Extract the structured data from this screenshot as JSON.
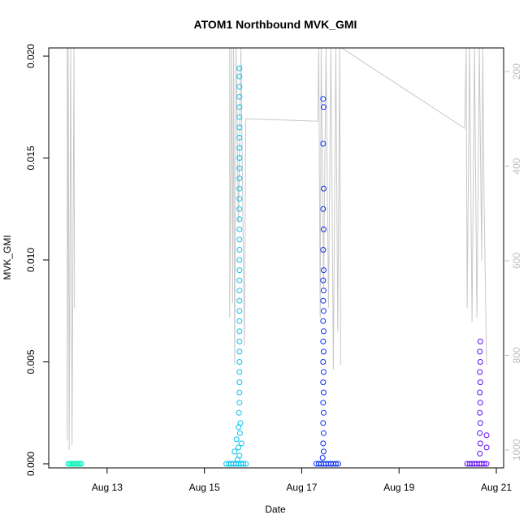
{
  "chart_data": {
    "type": "scatter",
    "title": "ATOM1 Northbound MVK_GMI",
    "xlabel": "Date",
    "ylabel": "MVK_GMI",
    "x_ticks": [
      "Aug 13",
      "Aug 15",
      "Aug 17",
      "Aug 19",
      "Aug 21"
    ],
    "x_tick_values": [
      13,
      15,
      17,
      19,
      21
    ],
    "xlim": [
      11.8,
      21.15
    ],
    "y_ticks": [
      "0.000",
      "0.005",
      "0.010",
      "0.015",
      "0.020"
    ],
    "y_tick_values": [
      0,
      0.005,
      0.01,
      0.015,
      0.02
    ],
    "ylim": [
      -0.0002,
      0.0204
    ],
    "right_axis": {
      "ticks": [
        "200",
        "400",
        "600",
        "800",
        "1000"
      ],
      "tick_values": [
        200,
        400,
        600,
        800,
        1000
      ],
      "ylim": [
        1038,
        150
      ],
      "reversed": true,
      "color": "#bebebe"
    },
    "grid": false,
    "series": [
      {
        "color": "#00f5bd",
        "points": [
          [
            12.2,
            0
          ],
          [
            12.23,
            0
          ],
          [
            12.26,
            0
          ],
          [
            12.29,
            0
          ],
          [
            12.32,
            0
          ],
          [
            12.35,
            0
          ],
          [
            12.38,
            0
          ],
          [
            12.41,
            0
          ],
          [
            12.44,
            0
          ],
          [
            12.47,
            0
          ]
        ]
      },
      {
        "color": "#00c3f3",
        "points": [
          [
            15.45,
            0
          ],
          [
            15.5,
            0
          ],
          [
            15.55,
            0
          ],
          [
            15.6,
            0
          ],
          [
            15.65,
            0
          ],
          [
            15.7,
            0
          ],
          [
            15.75,
            0
          ],
          [
            15.8,
            0
          ],
          [
            15.85,
            0
          ],
          [
            15.68,
            0.0002
          ],
          [
            15.72,
            0.0004
          ],
          [
            15.62,
            0.0006
          ],
          [
            15.7,
            0.0008
          ],
          [
            15.76,
            0.001
          ],
          [
            15.66,
            0.0012
          ],
          [
            15.73,
            0.0015
          ],
          [
            15.7,
            0.0018
          ],
          [
            15.74,
            0.002
          ],
          [
            15.71,
            0.0025
          ],
          [
            15.72,
            0.003
          ],
          [
            15.72,
            0.0035
          ],
          [
            15.72,
            0.004
          ],
          [
            15.72,
            0.0045
          ],
          [
            15.72,
            0.005
          ],
          [
            15.72,
            0.0055
          ],
          [
            15.72,
            0.006
          ],
          [
            15.72,
            0.0065
          ],
          [
            15.72,
            0.007
          ],
          [
            15.72,
            0.0075
          ],
          [
            15.72,
            0.008
          ],
          [
            15.72,
            0.0085
          ],
          [
            15.72,
            0.009
          ],
          [
            15.72,
            0.0095
          ],
          [
            15.72,
            0.01
          ],
          [
            15.72,
            0.0105
          ],
          [
            15.72,
            0.011
          ],
          [
            15.72,
            0.0115
          ],
          [
            15.72,
            0.012
          ],
          [
            15.72,
            0.0125
          ],
          [
            15.72,
            0.013
          ],
          [
            15.72,
            0.0135
          ],
          [
            15.72,
            0.014
          ],
          [
            15.72,
            0.0145
          ],
          [
            15.72,
            0.015
          ],
          [
            15.72,
            0.0155
          ],
          [
            15.72,
            0.016
          ],
          [
            15.72,
            0.0165
          ],
          [
            15.72,
            0.017
          ],
          [
            15.72,
            0.0175
          ],
          [
            15.72,
            0.018
          ],
          [
            15.72,
            0.0185
          ],
          [
            15.72,
            0.019
          ],
          [
            15.72,
            0.0194
          ]
        ]
      },
      {
        "color": "#0a2ef5",
        "points": [
          [
            17.3,
            0
          ],
          [
            17.35,
            0
          ],
          [
            17.4,
            0
          ],
          [
            17.45,
            0
          ],
          [
            17.5,
            0
          ],
          [
            17.55,
            0
          ],
          [
            17.6,
            0
          ],
          [
            17.65,
            0
          ],
          [
            17.7,
            0
          ],
          [
            17.75,
            0
          ],
          [
            17.43,
            0.0003
          ],
          [
            17.45,
            0.0006
          ],
          [
            17.44,
            0.001
          ],
          [
            17.45,
            0.0015
          ],
          [
            17.44,
            0.002
          ],
          [
            17.45,
            0.0025
          ],
          [
            17.44,
            0.003
          ],
          [
            17.45,
            0.0035
          ],
          [
            17.44,
            0.004
          ],
          [
            17.45,
            0.0045
          ],
          [
            17.44,
            0.005
          ],
          [
            17.45,
            0.0055
          ],
          [
            17.44,
            0.006
          ],
          [
            17.45,
            0.0065
          ],
          [
            17.44,
            0.007
          ],
          [
            17.45,
            0.0075
          ],
          [
            17.44,
            0.008
          ],
          [
            17.45,
            0.0085
          ],
          [
            17.44,
            0.009
          ],
          [
            17.45,
            0.0095
          ],
          [
            17.44,
            0.0105
          ],
          [
            17.45,
            0.0115
          ],
          [
            17.44,
            0.0125
          ],
          [
            17.45,
            0.0135
          ],
          [
            17.44,
            0.0157
          ],
          [
            17.45,
            0.0175
          ],
          [
            17.44,
            0.0179
          ]
        ]
      },
      {
        "color": "#5d0cf2",
        "points": [
          [
            20.4,
            0
          ],
          [
            20.45,
            0
          ],
          [
            20.5,
            0
          ],
          [
            20.55,
            0
          ],
          [
            20.6,
            0
          ],
          [
            20.65,
            0
          ],
          [
            20.7,
            0
          ],
          [
            20.75,
            0
          ],
          [
            20.8,
            0
          ],
          [
            20.66,
            0.0005
          ],
          [
            20.67,
            0.001
          ],
          [
            20.66,
            0.0015
          ],
          [
            20.67,
            0.002
          ],
          [
            20.66,
            0.0025
          ],
          [
            20.67,
            0.003
          ],
          [
            20.66,
            0.0035
          ],
          [
            20.67,
            0.004
          ],
          [
            20.66,
            0.0045
          ],
          [
            20.67,
            0.005
          ],
          [
            20.66,
            0.0055
          ],
          [
            20.67,
            0.006
          ],
          [
            20.8,
            0.0008
          ],
          [
            20.8,
            0.0014
          ]
        ]
      }
    ],
    "secondary_line": {
      "color": "#c8c8c8",
      "right_axis": true,
      "segments": [
        [
          [
            12.18,
            150
          ],
          [
            12.18,
            980
          ],
          [
            12.2,
            150
          ],
          [
            12.22,
            1000
          ],
          [
            12.25,
            150
          ],
          [
            12.28,
            990
          ],
          [
            12.32,
            150
          ],
          [
            12.33,
            700
          ]
        ],
        [
          [
            15.52,
            150
          ],
          [
            15.52,
            720
          ],
          [
            15.56,
            150
          ],
          [
            15.58,
            690
          ],
          [
            15.6,
            150
          ],
          [
            15.62,
            820
          ],
          [
            15.65,
            150
          ],
          [
            15.7,
            520
          ],
          [
            15.75,
            150
          ],
          [
            15.82,
            780
          ],
          [
            15.85,
            300
          ]
        ],
        [
          [
            15.85,
            300
          ],
          [
            17.33,
            305
          ],
          [
            17.35,
            150
          ],
          [
            17.38,
            720
          ],
          [
            17.4,
            150
          ],
          [
            17.45,
            660
          ],
          [
            17.5,
            150
          ],
          [
            17.55,
            700
          ],
          [
            17.6,
            150
          ],
          [
            17.65,
            830
          ],
          [
            17.7,
            150
          ],
          [
            17.74,
            750
          ],
          [
            17.78,
            150
          ],
          [
            17.8,
            820
          ]
        ],
        [
          [
            17.82,
            150
          ],
          [
            20.35,
            320
          ],
          [
            20.38,
            150
          ],
          [
            20.4,
            700
          ],
          [
            20.45,
            150
          ],
          [
            20.5,
            730
          ],
          [
            20.55,
            150
          ],
          [
            20.6,
            720
          ],
          [
            20.65,
            150
          ],
          [
            20.7,
            600
          ],
          [
            20.72,
            150
          ],
          [
            20.75,
            480
          ],
          [
            20.8,
            820
          ]
        ]
      ]
    }
  }
}
